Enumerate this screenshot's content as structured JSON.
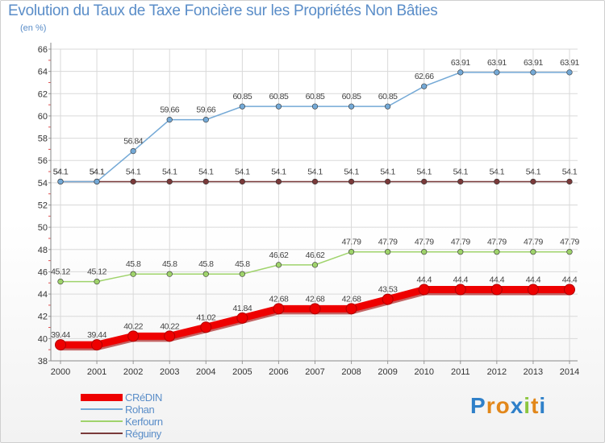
{
  "title": "Evolution du Taux de Taxe Foncière sur les Propriétés Non Bâties",
  "subtitle": "(en %)",
  "brand": {
    "letters": [
      "P",
      "r",
      "o",
      "x",
      "i",
      "t",
      "i"
    ],
    "colors": [
      "#2f80c9",
      "#e2871a",
      "#e2871a",
      "#2f80c9",
      "#8cc63f",
      "#e2871a",
      "#2f80c9"
    ]
  },
  "chart_data": {
    "type": "line",
    "title": "Evolution du Taux de Taxe Foncière sur les Propriétés Non Bâties",
    "ylabel": "(en %)",
    "xlabel": "",
    "ylim": [
      38,
      66
    ],
    "yticks": [
      38,
      40,
      42,
      44,
      46,
      48,
      50,
      52,
      54,
      56,
      58,
      60,
      62,
      64,
      66
    ],
    "x": [
      "2000",
      "2001",
      "2002",
      "2003",
      "2004",
      "2005",
      "2006",
      "2007",
      "2008",
      "2009",
      "2010",
      "2011",
      "2012",
      "2013",
      "2014"
    ],
    "grid": true,
    "legend": "bottom-left",
    "series": [
      {
        "name": "CRéDIN",
        "color": "#ee0000",
        "emphasis": true,
        "values": [
          39.44,
          39.44,
          40.22,
          40.22,
          41.02,
          41.84,
          42.68,
          42.68,
          42.68,
          43.53,
          44.4,
          44.4,
          44.4,
          44.4,
          44.4
        ],
        "labels": [
          "39.44",
          "39.44",
          "40.22",
          "40.22",
          "41.02",
          "41.84",
          "42.68",
          "42.68",
          "42.68",
          "43.53",
          "44.4",
          "44.4",
          "44.4",
          "44.4",
          "44.4"
        ]
      },
      {
        "name": "Rohan",
        "color": "#74a9d6",
        "values": [
          54.1,
          54.1,
          56.84,
          59.66,
          59.66,
          60.85,
          60.85,
          60.85,
          60.85,
          60.85,
          62.66,
          63.91,
          63.91,
          63.91,
          63.91
        ],
        "labels": [
          "54.1",
          "54.1",
          "56.84",
          "59.66",
          "59.66",
          "60.85",
          "60.85",
          "60.85",
          "60.85",
          "60.85",
          "62.66",
          "63.91",
          "63.91",
          "63.91",
          "63.91"
        ]
      },
      {
        "name": "Kerfourn",
        "color": "#9fd36b",
        "values": [
          45.12,
          45.12,
          45.8,
          45.8,
          45.8,
          45.8,
          46.62,
          46.62,
          47.79,
          47.79,
          47.79,
          47.79,
          47.79,
          47.79,
          47.79
        ],
        "labels": [
          "45.12",
          "45.12",
          "45.8",
          "45.8",
          "45.8",
          "45.8",
          "46.62",
          "46.62",
          "47.79",
          "47.79",
          "47.79",
          "47.79",
          "47.79",
          "47.79",
          "47.79"
        ]
      },
      {
        "name": "Réguiny",
        "color": "#7a3a3a",
        "values": [
          54.1,
          54.1,
          54.1,
          54.1,
          54.1,
          54.1,
          54.1,
          54.1,
          54.1,
          54.1,
          54.1,
          54.1,
          54.1,
          54.1,
          54.1
        ],
        "labels": [
          "54.1",
          "54.1",
          "54.1",
          "54.1",
          "54.1",
          "54.1",
          "54.1",
          "54.1",
          "54.1",
          "54.1",
          "54.1",
          "54.1",
          "54.1",
          "54.1",
          "54.1"
        ]
      }
    ]
  }
}
